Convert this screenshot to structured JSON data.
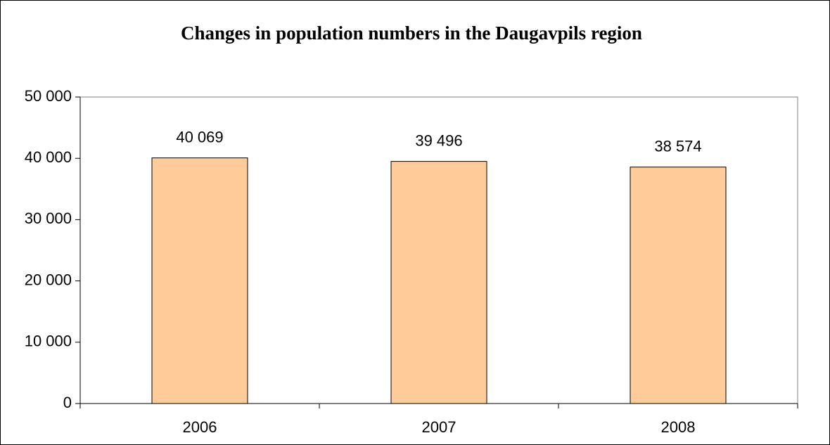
{
  "chart_data": {
    "type": "bar",
    "title": "Changes in population numbers in the Daugavpils region",
    "categories": [
      "2006",
      "2007",
      "2008"
    ],
    "values": [
      40069,
      39496,
      38574
    ],
    "value_labels": [
      "40 069",
      "39 496",
      "38 574"
    ],
    "color": "#ffcc99",
    "ylim": [
      0,
      50000
    ],
    "yticks": [
      {
        "value": 0,
        "label": "0"
      },
      {
        "value": 10000,
        "label": "10 000"
      },
      {
        "value": 20000,
        "label": "20 000"
      },
      {
        "value": 30000,
        "label": "30 000"
      },
      {
        "value": 40000,
        "label": "40 000"
      },
      {
        "value": 50000,
        "label": "50 000"
      }
    ],
    "grid": false
  }
}
